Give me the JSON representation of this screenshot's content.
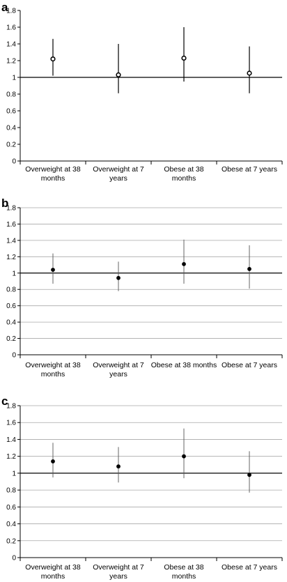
{
  "chart_data": [
    {
      "type": "scatter",
      "panel_label": "a",
      "title": "",
      "xlabel": "",
      "ylabel": "",
      "ylim": [
        0,
        1.8
      ],
      "yticks": [
        "0",
        "0.2",
        "0.4",
        "0.6",
        "0.8",
        "1",
        "1.2",
        "1.4",
        "1.6",
        "1.8"
      ],
      "reference_line": 1,
      "grid": false,
      "marker": "open-circle",
      "categories": [
        [
          "Overweight at 38",
          "months"
        ],
        [
          "Overweight at 7",
          "years"
        ],
        [
          "Obese at 38",
          "months"
        ],
        [
          "Obese at 7 years"
        ]
      ],
      "values": [
        1.22,
        1.03,
        1.23,
        1.05
      ],
      "lower": [
        1.02,
        0.81,
        0.95,
        0.81
      ],
      "upper": [
        1.46,
        1.4,
        1.6,
        1.37
      ]
    },
    {
      "type": "scatter",
      "panel_label": "b",
      "title": "",
      "xlabel": "",
      "ylabel": "",
      "ylim": [
        0,
        1.8
      ],
      "yticks": [
        "0",
        "0.2",
        "0.4",
        "0.6",
        "0.8",
        "1",
        "1.2",
        "1.4",
        "1.6",
        "1.8"
      ],
      "reference_line": 1,
      "grid": true,
      "marker": "filled-circle",
      "categories": [
        [
          "Overweight at 38",
          "months"
        ],
        [
          "Overweight at 7",
          "years"
        ],
        [
          "Obese at 38 months"
        ],
        [
          "Obese at 7 years"
        ]
      ],
      "values": [
        1.04,
        0.94,
        1.11,
        1.05
      ],
      "lower": [
        0.87,
        0.78,
        0.87,
        0.81
      ],
      "upper": [
        1.24,
        1.14,
        1.41,
        1.34
      ]
    },
    {
      "type": "scatter",
      "panel_label": "c",
      "title": "",
      "xlabel": "",
      "ylabel": "",
      "ylim": [
        0,
        1.8
      ],
      "yticks": [
        "0",
        "0.2",
        "0.4",
        "0.6",
        "0.8",
        "1",
        "1.2",
        "1.4",
        "1.6",
        "1.8"
      ],
      "reference_line": 1,
      "grid": true,
      "marker": "filled-circle",
      "categories": [
        [
          "Overweight at 38",
          "months"
        ],
        [
          "Overweight at 7",
          "years"
        ],
        [
          "Obese at 38",
          "months"
        ],
        [
          "Obese at 7 years"
        ]
      ],
      "values": [
        1.14,
        1.08,
        1.2,
        0.98
      ],
      "lower": [
        0.95,
        0.89,
        0.94,
        0.77
      ],
      "upper": [
        1.36,
        1.31,
        1.53,
        1.26
      ]
    }
  ]
}
